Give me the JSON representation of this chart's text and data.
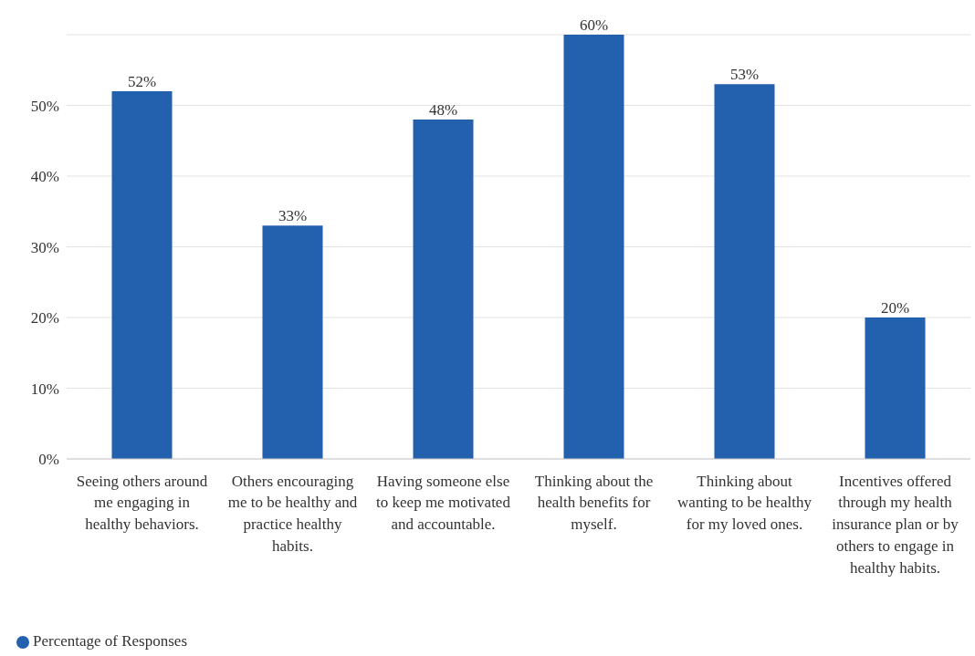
{
  "chart_data": {
    "type": "bar",
    "categories": [
      "Seeing others around me engaging in healthy behaviors.",
      "Others encouraging me to be healthy and practice healthy habits.",
      "Having someone else to keep me motivated and accountable.",
      "Thinking about the health benefits for myself.",
      "Thinking about wanting to be healthy for my loved ones.",
      "Incentives offered through my health insurance plan or by others to engage in healthy habits."
    ],
    "series": [
      {
        "name": "Percentage of Responses",
        "color": "#2361ae",
        "values": [
          52,
          33,
          48,
          60,
          53,
          20
        ],
        "value_labels": [
          "52%",
          "33%",
          "48%",
          "60%",
          "53%",
          "20%"
        ]
      }
    ],
    "ylim": [
      0,
      60
    ],
    "yticks": [
      {
        "value": 0,
        "label": "0%"
      },
      {
        "value": 10,
        "label": "10%"
      },
      {
        "value": 20,
        "label": "20%"
      },
      {
        "value": 30,
        "label": "30%"
      },
      {
        "value": 40,
        "label": "40%"
      },
      {
        "value": 50,
        "label": "50%"
      }
    ],
    "grid": "y",
    "legend": "bottom left"
  }
}
